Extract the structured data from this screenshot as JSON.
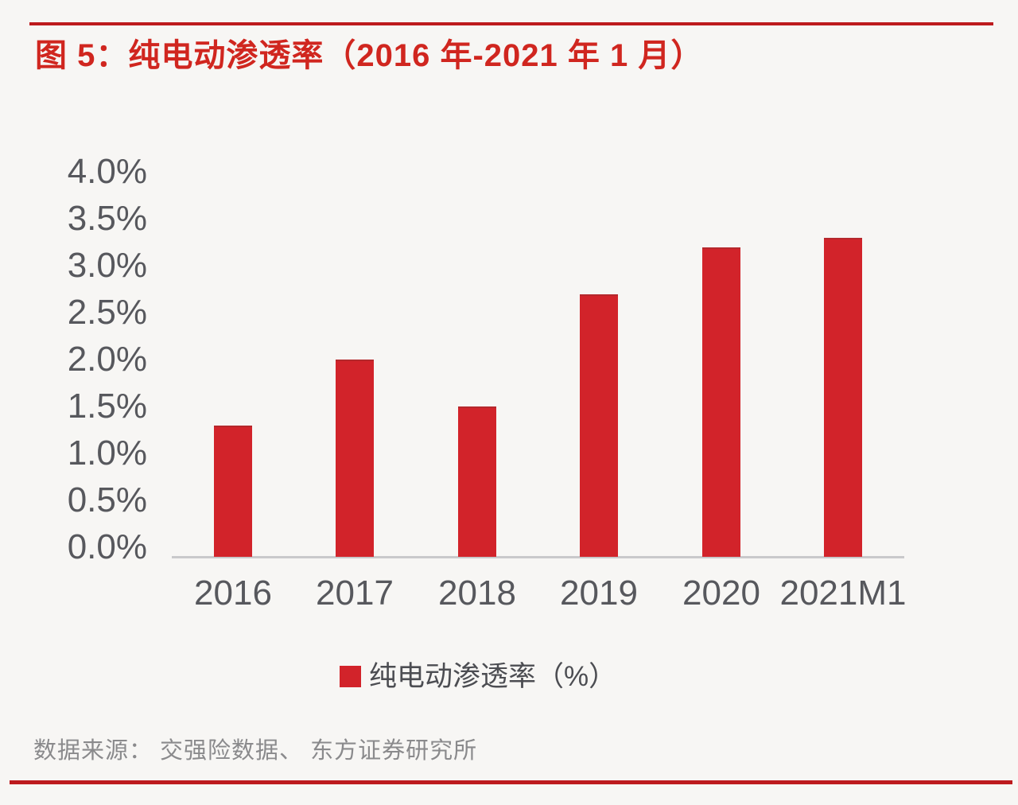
{
  "figure": {
    "title": "图 5：纯电动渗透率（2016 年-2021 年 1 月）",
    "source": "数据来源： 交强险数据、 东方证券研究所"
  },
  "legend": {
    "label": "纯电动渗透率（%）"
  },
  "colors": {
    "background": "#f7f6f4",
    "bar": "#d2232a",
    "bar_top_edge": "#b5282c",
    "title_red": "#d0261f",
    "rule_red": "#bd1b1e",
    "axis_line": "#c9c9cb",
    "tick_label": "#57585d",
    "legend_text": "#4c4d52",
    "source_text": "#8a8a8c"
  },
  "chart_data": {
    "type": "bar",
    "title": "纯电动渗透率（2016 年-2021 年 1 月）",
    "categories": [
      "2016",
      "2017",
      "2018",
      "2019",
      "2020",
      "2021M1"
    ],
    "values": [
      1.4,
      2.1,
      1.6,
      2.8,
      3.3,
      3.4
    ],
    "series_name": "纯电动渗透率（%）",
    "unit": "%",
    "xlabel": "",
    "ylabel": "",
    "ylim": [
      0,
      4.0
    ],
    "ytick_step": 0.5,
    "ytick_labels": [
      "0.0%",
      "0.5%",
      "1.0%",
      "1.5%",
      "2.0%",
      "2.5%",
      "3.0%",
      "3.5%",
      "4.0%"
    ],
    "grid": false,
    "legend_position": "bottom"
  }
}
